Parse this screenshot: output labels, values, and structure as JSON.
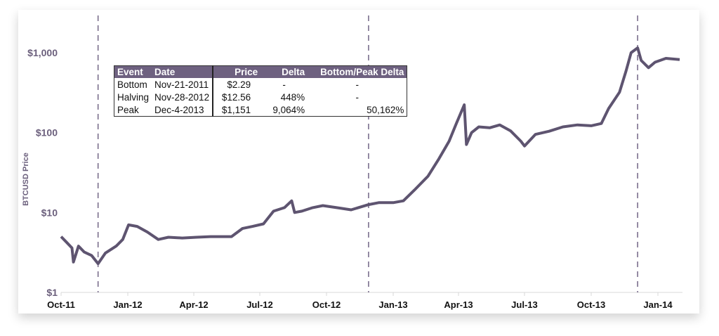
{
  "chart_data": {
    "type": "line",
    "ylabel": "BTCUSD Price",
    "yscale": "log",
    "ylim": [
      1,
      1000
    ],
    "yticks": [
      {
        "value": 1,
        "label": "$1"
      },
      {
        "value": 10,
        "label": "$10"
      },
      {
        "value": 100,
        "label": "$100"
      },
      {
        "value": 1000,
        "label": "$1,000"
      }
    ],
    "xticks": [
      {
        "date": "2011-10-01",
        "label": "Oct-11"
      },
      {
        "date": "2012-01-01",
        "label": "Jan-12"
      },
      {
        "date": "2012-04-01",
        "label": "Apr-12"
      },
      {
        "date": "2012-07-01",
        "label": "Jul-12"
      },
      {
        "date": "2012-10-01",
        "label": "Oct-12"
      },
      {
        "date": "2013-01-01",
        "label": "Jan-13"
      },
      {
        "date": "2013-04-01",
        "label": "Apr-13"
      },
      {
        "date": "2013-07-01",
        "label": "Jul-13"
      },
      {
        "date": "2013-10-01",
        "label": "Oct-13"
      },
      {
        "date": "2014-01-01",
        "label": "Jan-14"
      }
    ],
    "grid": false,
    "line_color": "#5e5470",
    "event_lines": [
      "2011-11-21",
      "2012-11-28",
      "2013-12-04"
    ],
    "series": [
      {
        "x": [
          "2011-10-01",
          "2011-10-09",
          "2011-10-16",
          "2011-10-18",
          "2011-10-25",
          "2011-11-02",
          "2011-11-12",
          "2011-11-21",
          "2011-12-01",
          "2011-12-16",
          "2011-12-25",
          "2012-01-02",
          "2012-01-14",
          "2012-01-28",
          "2012-02-12",
          "2012-02-26",
          "2012-03-16",
          "2012-04-05",
          "2012-04-24",
          "2012-05-23",
          "2012-06-07",
          "2012-06-21",
          "2012-07-06",
          "2012-07-20",
          "2012-08-04",
          "2012-08-14",
          "2012-08-18",
          "2012-08-28",
          "2012-09-12",
          "2012-09-26",
          "2012-10-15",
          "2012-11-04",
          "2012-11-28",
          "2012-12-12",
          "2013-01-01",
          "2013-01-15",
          "2013-01-30",
          "2013-02-18",
          "2013-03-05",
          "2013-03-19",
          "2013-03-29",
          "2013-04-09",
          "2013-04-12",
          "2013-04-19",
          "2013-04-29",
          "2013-05-14",
          "2013-05-28",
          "2013-06-12",
          "2013-06-26",
          "2013-07-01",
          "2013-07-16",
          "2013-08-04",
          "2013-08-23",
          "2013-09-12",
          "2013-10-01",
          "2013-10-15",
          "2013-10-25",
          "2013-11-09",
          "2013-11-18",
          "2013-11-25",
          "2013-12-04",
          "2013-12-09",
          "2013-12-19",
          "2013-12-28",
          "2014-01-12",
          "2014-01-31"
        ],
        "y": [
          5.0,
          4.2,
          3.6,
          2.4,
          3.8,
          3.2,
          2.9,
          2.29,
          3.1,
          3.8,
          4.6,
          7.0,
          6.7,
          5.7,
          4.6,
          4.9,
          4.8,
          4.9,
          5.0,
          5.0,
          6.3,
          6.7,
          7.2,
          10.4,
          11.5,
          14.0,
          10.0,
          10.4,
          11.5,
          12.2,
          11.5,
          10.8,
          12.56,
          13.3,
          13.3,
          14.0,
          19.0,
          28.5,
          47.0,
          78.0,
          130.0,
          223.0,
          71.0,
          100.0,
          118.0,
          115.0,
          125.0,
          105.0,
          78.0,
          68.0,
          95.0,
          104.0,
          118.0,
          125.0,
          122.0,
          130.0,
          200.0,
          320.0,
          590.0,
          1000.0,
          1151.0,
          800.0,
          650.0,
          760.0,
          850.0,
          820.0
        ]
      }
    ]
  },
  "table": {
    "headers": [
      "Event",
      "Date",
      "Price",
      "Delta",
      "Bottom/Peak Delta"
    ],
    "rows": [
      [
        "Bottom",
        "Nov-21-2011",
        "$2.29",
        "-",
        "-"
      ],
      [
        "Halving",
        "Nov-28-2012",
        "$12.56",
        "448%",
        "-"
      ],
      [
        "Peak",
        "Dec-4-2013",
        "$1,151",
        "9,064%",
        "50,162%"
      ]
    ],
    "header_color": "#6e6180"
  }
}
